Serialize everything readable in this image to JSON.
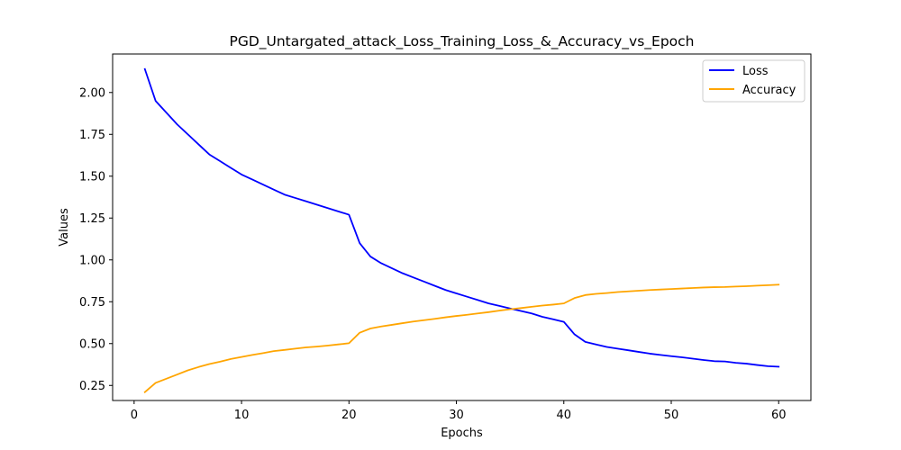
{
  "chart_data": {
    "type": "line",
    "title": "PGD_Untargated_attack_Loss_Training_Loss_&_Accuracy_vs_Epoch",
    "xlabel": "Epochs",
    "ylabel": "Values",
    "xlim": [
      -2,
      63
    ],
    "ylim": [
      0.16,
      2.23
    ],
    "xticks": [
      0,
      10,
      20,
      30,
      40,
      50,
      60
    ],
    "yticks": [
      0.25,
      0.5,
      0.75,
      1.0,
      1.25,
      1.5,
      1.75,
      2.0
    ],
    "grid": false,
    "legend": "top-right",
    "x": [
      1,
      2,
      3,
      4,
      5,
      6,
      7,
      8,
      9,
      10,
      11,
      12,
      13,
      14,
      15,
      16,
      17,
      18,
      19,
      20,
      21,
      22,
      23,
      24,
      25,
      26,
      27,
      28,
      29,
      30,
      31,
      32,
      33,
      34,
      35,
      36,
      37,
      38,
      39,
      40,
      41,
      42,
      43,
      44,
      45,
      46,
      47,
      48,
      49,
      50,
      51,
      52,
      53,
      54,
      55,
      56,
      57,
      58,
      59,
      60
    ],
    "series": [
      {
        "name": "Loss",
        "color": "#0000ff",
        "values": [
          2.14,
          1.95,
          1.88,
          1.81,
          1.75,
          1.69,
          1.63,
          1.59,
          1.55,
          1.51,
          1.48,
          1.45,
          1.42,
          1.39,
          1.37,
          1.35,
          1.33,
          1.31,
          1.29,
          1.27,
          1.1,
          1.02,
          0.98,
          0.95,
          0.92,
          0.895,
          0.87,
          0.845,
          0.82,
          0.8,
          0.78,
          0.76,
          0.74,
          0.725,
          0.71,
          0.695,
          0.68,
          0.66,
          0.645,
          0.63,
          0.555,
          0.51,
          0.495,
          0.48,
          0.47,
          0.46,
          0.45,
          0.44,
          0.432,
          0.425,
          0.418,
          0.41,
          0.402,
          0.395,
          0.393,
          0.385,
          0.38,
          0.372,
          0.365,
          0.362
        ]
      },
      {
        "name": "Accuracy",
        "color": "#ffa500",
        "values": [
          0.21,
          0.265,
          0.29,
          0.315,
          0.34,
          0.36,
          0.378,
          0.392,
          0.408,
          0.42,
          0.432,
          0.443,
          0.455,
          0.462,
          0.47,
          0.477,
          0.482,
          0.488,
          0.495,
          0.502,
          0.565,
          0.59,
          0.602,
          0.612,
          0.622,
          0.632,
          0.64,
          0.648,
          0.657,
          0.665,
          0.672,
          0.68,
          0.688,
          0.697,
          0.705,
          0.712,
          0.72,
          0.727,
          0.733,
          0.74,
          0.772,
          0.79,
          0.797,
          0.802,
          0.808,
          0.812,
          0.816,
          0.82,
          0.823,
          0.826,
          0.829,
          0.832,
          0.835,
          0.837,
          0.838,
          0.841,
          0.843,
          0.846,
          0.849,
          0.852
        ]
      }
    ]
  }
}
